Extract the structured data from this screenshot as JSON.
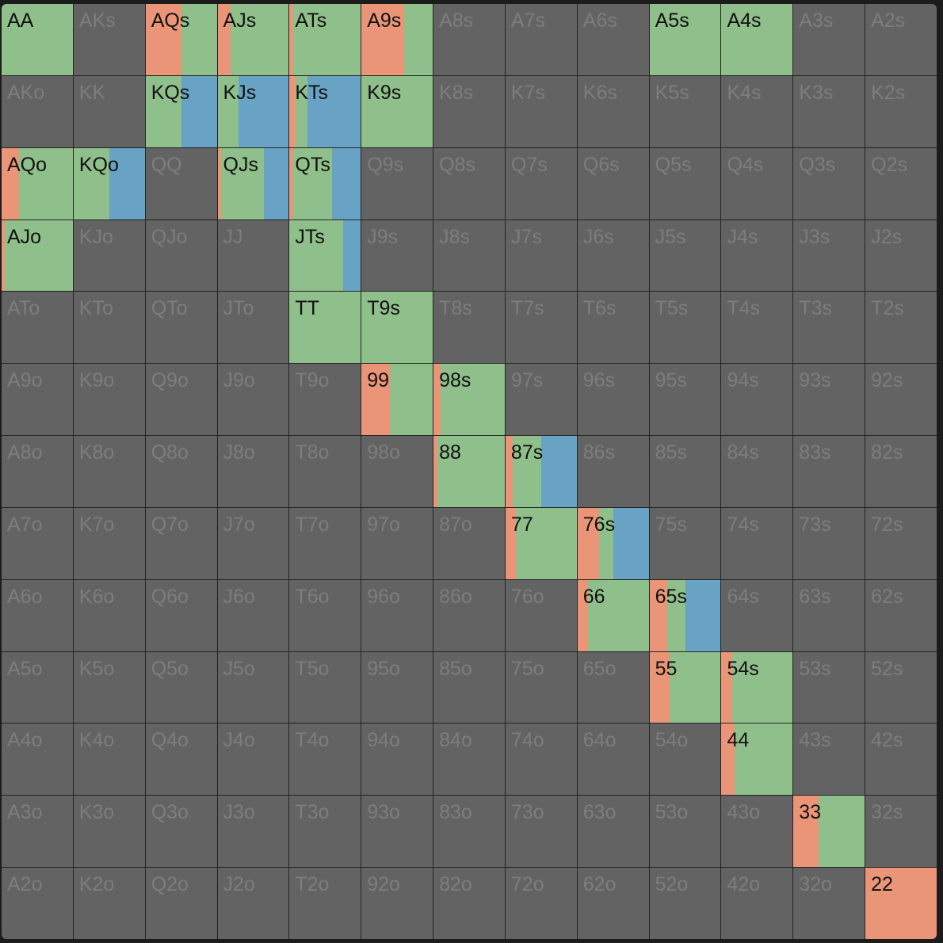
{
  "colors": {
    "empty": "#636363",
    "raise": "#ea9478",
    "call": "#8fbf8a",
    "fold_alt": "#68a2c4",
    "text_active": "#111111",
    "text_inactive": "#7d7d7d"
  },
  "rows": [
    [
      "AA",
      "AKs",
      "AQs",
      "AJs",
      "ATs",
      "A9s",
      "A8s",
      "A7s",
      "A6s",
      "A5s",
      "A4s",
      "A3s",
      "A2s"
    ],
    [
      "AKo",
      "KK",
      "KQs",
      "KJs",
      "KTs",
      "K9s",
      "K8s",
      "K7s",
      "K6s",
      "K5s",
      "K4s",
      "K3s",
      "K2s"
    ],
    [
      "AQo",
      "KQo",
      "QQ",
      "QJs",
      "QTs",
      "Q9s",
      "Q8s",
      "Q7s",
      "Q6s",
      "Q5s",
      "Q4s",
      "Q3s",
      "Q2s"
    ],
    [
      "AJo",
      "KJo",
      "QJo",
      "JJ",
      "JTs",
      "J9s",
      "J8s",
      "J7s",
      "J6s",
      "J5s",
      "J4s",
      "J3s",
      "J2s"
    ],
    [
      "ATo",
      "KTo",
      "QTo",
      "JTo",
      "TT",
      "T9s",
      "T8s",
      "T7s",
      "T6s",
      "T5s",
      "T4s",
      "T3s",
      "T2s"
    ],
    [
      "A9o",
      "K9o",
      "Q9o",
      "J9o",
      "T9o",
      "99",
      "98s",
      "97s",
      "96s",
      "95s",
      "94s",
      "93s",
      "92s"
    ],
    [
      "A8o",
      "K8o",
      "Q8o",
      "J8o",
      "T8o",
      "98o",
      "88",
      "87s",
      "86s",
      "85s",
      "84s",
      "83s",
      "82s"
    ],
    [
      "A7o",
      "K7o",
      "Q7o",
      "J7o",
      "T7o",
      "97o",
      "87o",
      "77",
      "76s",
      "75s",
      "74s",
      "73s",
      "72s"
    ],
    [
      "A6o",
      "K6o",
      "Q6o",
      "J6o",
      "T6o",
      "96o",
      "86o",
      "76o",
      "66",
      "65s",
      "64s",
      "63s",
      "62s"
    ],
    [
      "A5o",
      "K5o",
      "Q5o",
      "J5o",
      "T5o",
      "95o",
      "85o",
      "75o",
      "65o",
      "55",
      "54s",
      "53s",
      "52s"
    ],
    [
      "A4o",
      "K4o",
      "Q4o",
      "J4o",
      "T4o",
      "94o",
      "84o",
      "74o",
      "64o",
      "54o",
      "44",
      "43s",
      "42s"
    ],
    [
      "A3o",
      "K3o",
      "Q3o",
      "J3o",
      "T3o",
      "93o",
      "83o",
      "73o",
      "63o",
      "53o",
      "43o",
      "33",
      "32s"
    ],
    [
      "A2o",
      "K2o",
      "Q2o",
      "J2o",
      "T2o",
      "92o",
      "82o",
      "72o",
      "62o",
      "52o",
      "42o",
      "32o",
      "22"
    ]
  ],
  "strategies": {
    "AA": [
      0,
      1,
      0
    ],
    "AQs": [
      0.5,
      0.5,
      0
    ],
    "AJs": [
      0.18,
      0.82,
      0
    ],
    "ATs": [
      0.05,
      0.95,
      0
    ],
    "A9s": [
      0.6,
      0.4,
      0
    ],
    "A5s": [
      0,
      1,
      0
    ],
    "A4s": [
      0,
      1,
      0
    ],
    "KQs": [
      0,
      0.5,
      0.5
    ],
    "KJs": [
      0,
      0.3,
      0.7
    ],
    "KTs": [
      0.08,
      0.17,
      0.75
    ],
    "K9s": [
      0,
      1,
      0
    ],
    "AQo": [
      0.25,
      0.75,
      0
    ],
    "KQo": [
      0,
      0.5,
      0.5
    ],
    "QJs": [
      0.05,
      0.6,
      0.35
    ],
    "QTs": [
      0.05,
      0.55,
      0.4
    ],
    "AJo": [
      0.05,
      0.95,
      0
    ],
    "JTs": [
      0,
      0.75,
      0.25
    ],
    "TT": [
      0,
      1,
      0
    ],
    "T9s": [
      0,
      1,
      0
    ],
    "99": [
      0.4,
      0.6,
      0
    ],
    "98s": [
      0.1,
      0.9,
      0
    ],
    "88": [
      0.05,
      0.95,
      0
    ],
    "87s": [
      0.1,
      0.4,
      0.5
    ],
    "77": [
      0.15,
      0.85,
      0
    ],
    "76s": [
      0.3,
      0.2,
      0.5
    ],
    "66": [
      0.15,
      0.85,
      0
    ],
    "65s": [
      0.25,
      0.25,
      0.5
    ],
    "55": [
      0.28,
      0.72,
      0
    ],
    "54s": [
      0.15,
      0.85,
      0
    ],
    "44": [
      0.18,
      0.82,
      0
    ],
    "33": [
      0.35,
      0.65,
      0
    ],
    "22": [
      1,
      0,
      0
    ]
  }
}
